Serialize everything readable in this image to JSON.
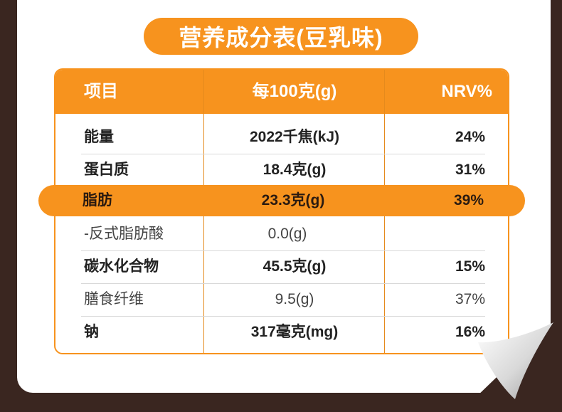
{
  "title": "营养成分表(豆乳味)",
  "table": {
    "headers": [
      "项目",
      "每100克(g)",
      "NRV%"
    ],
    "rows": [
      {
        "name": "能量",
        "value": "2022千焦(kJ)",
        "nrv": "24%"
      },
      {
        "name": "蛋白质",
        "value": "18.4克(g)",
        "nrv": "31%"
      },
      {
        "name": "脂肪",
        "value": "23.3克(g)",
        "nrv": "39%"
      },
      {
        "name": "-反式脂肪酸",
        "value": "0.0(g)",
        "nrv": ""
      },
      {
        "name": "碳水化合物",
        "value": "45.5克(g)",
        "nrv": "15%"
      },
      {
        "name": "膳食纤维",
        "value": "9.5(g)",
        "nrv": "37%"
      },
      {
        "name": "钠",
        "value": "317毫克(mg)",
        "nrv": "16%"
      }
    ]
  },
  "colors": {
    "accent": "#f7931e",
    "background": "#3a2620",
    "card": "#ffffff"
  }
}
